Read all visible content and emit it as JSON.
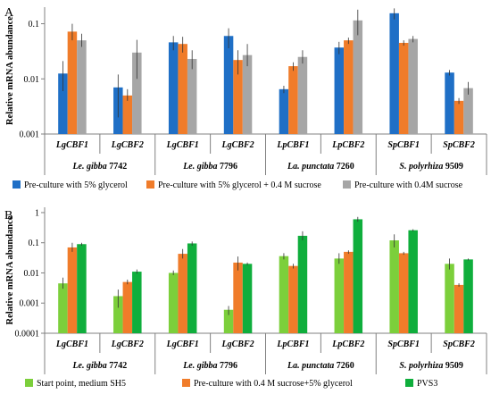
{
  "chart_data": [
    {
      "type": "bar",
      "panel_label": "A",
      "ylabel": "Relative mRNA abundance",
      "yscale": "log",
      "ylim": [
        0.001,
        0.2
      ],
      "yticks": [
        0.001,
        0.01,
        0.1
      ],
      "ytick_labels": [
        "0.001",
        "0.01",
        "0.1"
      ],
      "categories": [
        "LgCBF1",
        "LgCBF2",
        "LgCBF1",
        "LgCBF2",
        "LpCBF1",
        "LpCBF2",
        "SpCBF1",
        "SpCBF2"
      ],
      "groups": [
        {
          "genus": "Le. gibba",
          "strain": "7742"
        },
        {
          "genus": "Le. gibba",
          "strain": "7796"
        },
        {
          "genus": "La. punctata",
          "strain": "7260"
        },
        {
          "genus": "S. polyrhiza",
          "strain": "9509"
        }
      ],
      "series": [
        {
          "name": "Pre-culture with 5% glycerol",
          "color": "#1f6fc6",
          "values": [
            0.0125,
            0.007,
            0.046,
            0.06,
            0.0065,
            0.037,
            0.155,
            0.013
          ],
          "err_lo": [
            0.006,
            0.002,
            0.033,
            0.036,
            0.0055,
            0.028,
            0.12,
            0.0115
          ],
          "err_hi": [
            0.021,
            0.012,
            0.06,
            0.083,
            0.0075,
            0.047,
            0.19,
            0.0145
          ]
        },
        {
          "name": "Pre-culture with 5% glycerol + 0.4 M sucrose",
          "color": "#f07c2a",
          "values": [
            0.072,
            0.005,
            0.043,
            0.022,
            0.017,
            0.05,
            0.045,
            0.004
          ],
          "err_lo": [
            0.05,
            0.004,
            0.03,
            0.012,
            0.014,
            0.043,
            0.04,
            0.0035
          ],
          "err_hi": [
            0.1,
            0.0065,
            0.058,
            0.033,
            0.02,
            0.056,
            0.05,
            0.0045
          ]
        },
        {
          "name": "Pre-culture with 0.4M sucrose",
          "color": "#a6a6a6",
          "values": [
            0.05,
            0.03,
            0.023,
            0.027,
            0.025,
            0.115,
            0.053,
            0.0068
          ],
          "err_lo": [
            0.038,
            0.01,
            0.015,
            0.017,
            0.019,
            0.062,
            0.046,
            0.0052
          ],
          "err_hi": [
            0.066,
            0.051,
            0.033,
            0.043,
            0.033,
            0.18,
            0.06,
            0.0088
          ]
        }
      ]
    },
    {
      "type": "bar",
      "panel_label": "B",
      "ylabel": "Relative mRNA abundance",
      "yscale": "log",
      "ylim": [
        0.0001,
        1.5
      ],
      "yticks": [
        0.0001,
        0.001,
        0.01,
        0.1,
        1
      ],
      "ytick_labels": [
        "0.0001",
        "0.001",
        "0.01",
        "0.1",
        "1"
      ],
      "categories": [
        "LgCBF1",
        "LgCBF2",
        "LgCBF1",
        "LgCBF2",
        "LpCBF1",
        "LpCBF2",
        "SpCBF1",
        "SpCBF2"
      ],
      "groups": [
        {
          "genus": "Le. gibba",
          "strain": "7742"
        },
        {
          "genus": "Le. gibba",
          "strain": "7796"
        },
        {
          "genus": "La. punctata",
          "strain": "7260"
        },
        {
          "genus": "S. polyrhiza",
          "strain": "9509"
        }
      ],
      "series": [
        {
          "name": "Start point, medium SH5",
          "color": "#7ccf3b",
          "values": [
            0.0045,
            0.0017,
            0.01,
            0.0006,
            0.036,
            0.03,
            0.12,
            0.02
          ],
          "err_lo": [
            0.003,
            0.0007,
            0.0085,
            0.0004,
            0.028,
            0.02,
            0.07,
            0.013
          ],
          "err_hi": [
            0.007,
            0.0028,
            0.012,
            0.0008,
            0.045,
            0.045,
            0.19,
            0.03
          ]
        },
        {
          "name": "Pre-culture with 0.4 M sucrose+5% glycerol",
          "color": "#f07c2a",
          "values": [
            0.07,
            0.005,
            0.043,
            0.022,
            0.017,
            0.05,
            0.045,
            0.004
          ],
          "err_lo": [
            0.05,
            0.0042,
            0.03,
            0.012,
            0.014,
            0.043,
            0.04,
            0.0035
          ],
          "err_hi": [
            0.1,
            0.006,
            0.062,
            0.035,
            0.02,
            0.056,
            0.05,
            0.0045
          ]
        },
        {
          "name": "PVS3",
          "color": "#0fae3c",
          "values": [
            0.09,
            0.011,
            0.095,
            0.02,
            0.17,
            0.6,
            0.26,
            0.028
          ],
          "err_lo": [
            0.08,
            0.0095,
            0.08,
            0.018,
            0.12,
            0.5,
            0.24,
            0.026
          ],
          "err_hi": [
            0.1,
            0.013,
            0.11,
            0.022,
            0.24,
            0.72,
            0.28,
            0.03
          ]
        }
      ]
    }
  ]
}
